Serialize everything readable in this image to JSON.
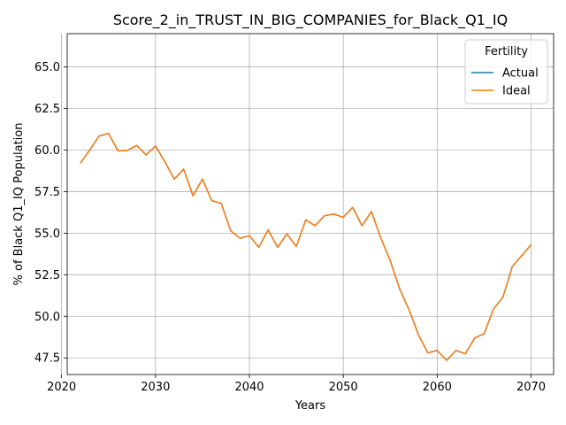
{
  "chart_data": {
    "type": "line",
    "title": "Score_2_in_TRUST_IN_BIG_COMPANIES_for_Black_Q1_IQ",
    "xlabel": "Years",
    "ylabel": "% of Black Q1_IQ Population",
    "xlim": [
      2020.6,
      2072.4
    ],
    "ylim": [
      46.5,
      67.0
    ],
    "xticks": [
      2020,
      2030,
      2040,
      2050,
      2060,
      2070
    ],
    "yticks": [
      47.5,
      50.0,
      52.5,
      55.0,
      57.5,
      60.0,
      62.5,
      65.0
    ],
    "xtick_labels": [
      "2020",
      "2030",
      "2040",
      "2050",
      "2060",
      "2070"
    ],
    "ytick_labels": [
      "47.5",
      "50.0",
      "52.5",
      "55.0",
      "57.5",
      "60.0",
      "62.5",
      "65.0"
    ],
    "grid": true,
    "legend": {
      "title": "Fertility",
      "position": "top-right"
    },
    "x": [
      2022,
      2023,
      2024,
      2025,
      2026,
      2027,
      2028,
      2029,
      2030,
      2031,
      2032,
      2033,
      2034,
      2035,
      2036,
      2037,
      2038,
      2039,
      2040,
      2041,
      2042,
      2043,
      2044,
      2045,
      2046,
      2047,
      2048,
      2049,
      2050,
      2051,
      2052,
      2053,
      2054,
      2055,
      2056,
      2057,
      2058,
      2059,
      2060,
      2061,
      2062,
      2063,
      2064,
      2065,
      2066,
      2067,
      2068,
      2069,
      2070
    ],
    "series": [
      {
        "name": "Actual",
        "color": "#1f77b4",
        "values": [
          59.2,
          60.0,
          60.85,
          61.0,
          59.95,
          59.97,
          60.28,
          59.7,
          60.25,
          59.3,
          58.25,
          58.85,
          57.25,
          58.25,
          56.95,
          56.8,
          55.15,
          54.7,
          54.85,
          54.15,
          55.2,
          54.15,
          54.95,
          54.2,
          55.8,
          55.45,
          56.05,
          56.15,
          55.95,
          56.55,
          55.45,
          56.3,
          54.7,
          53.35,
          51.65,
          50.4,
          48.9,
          47.8,
          47.95,
          47.35,
          47.95,
          47.75,
          48.7,
          48.95,
          50.45,
          51.15,
          53.0,
          53.65,
          54.3
        ]
      },
      {
        "name": "Ideal",
        "color": "#ff7f0e",
        "values": [
          59.2,
          60.0,
          60.85,
          61.0,
          59.95,
          59.97,
          60.28,
          59.7,
          60.25,
          59.3,
          58.25,
          58.85,
          57.25,
          58.25,
          56.95,
          56.8,
          55.15,
          54.7,
          54.85,
          54.15,
          55.2,
          54.15,
          54.95,
          54.2,
          55.8,
          55.45,
          56.05,
          56.15,
          55.95,
          56.55,
          55.45,
          56.3,
          54.7,
          53.35,
          51.65,
          50.4,
          48.9,
          47.8,
          47.95,
          47.35,
          47.95,
          47.75,
          48.7,
          48.95,
          50.45,
          51.15,
          53.0,
          53.65,
          54.3
        ]
      }
    ]
  }
}
